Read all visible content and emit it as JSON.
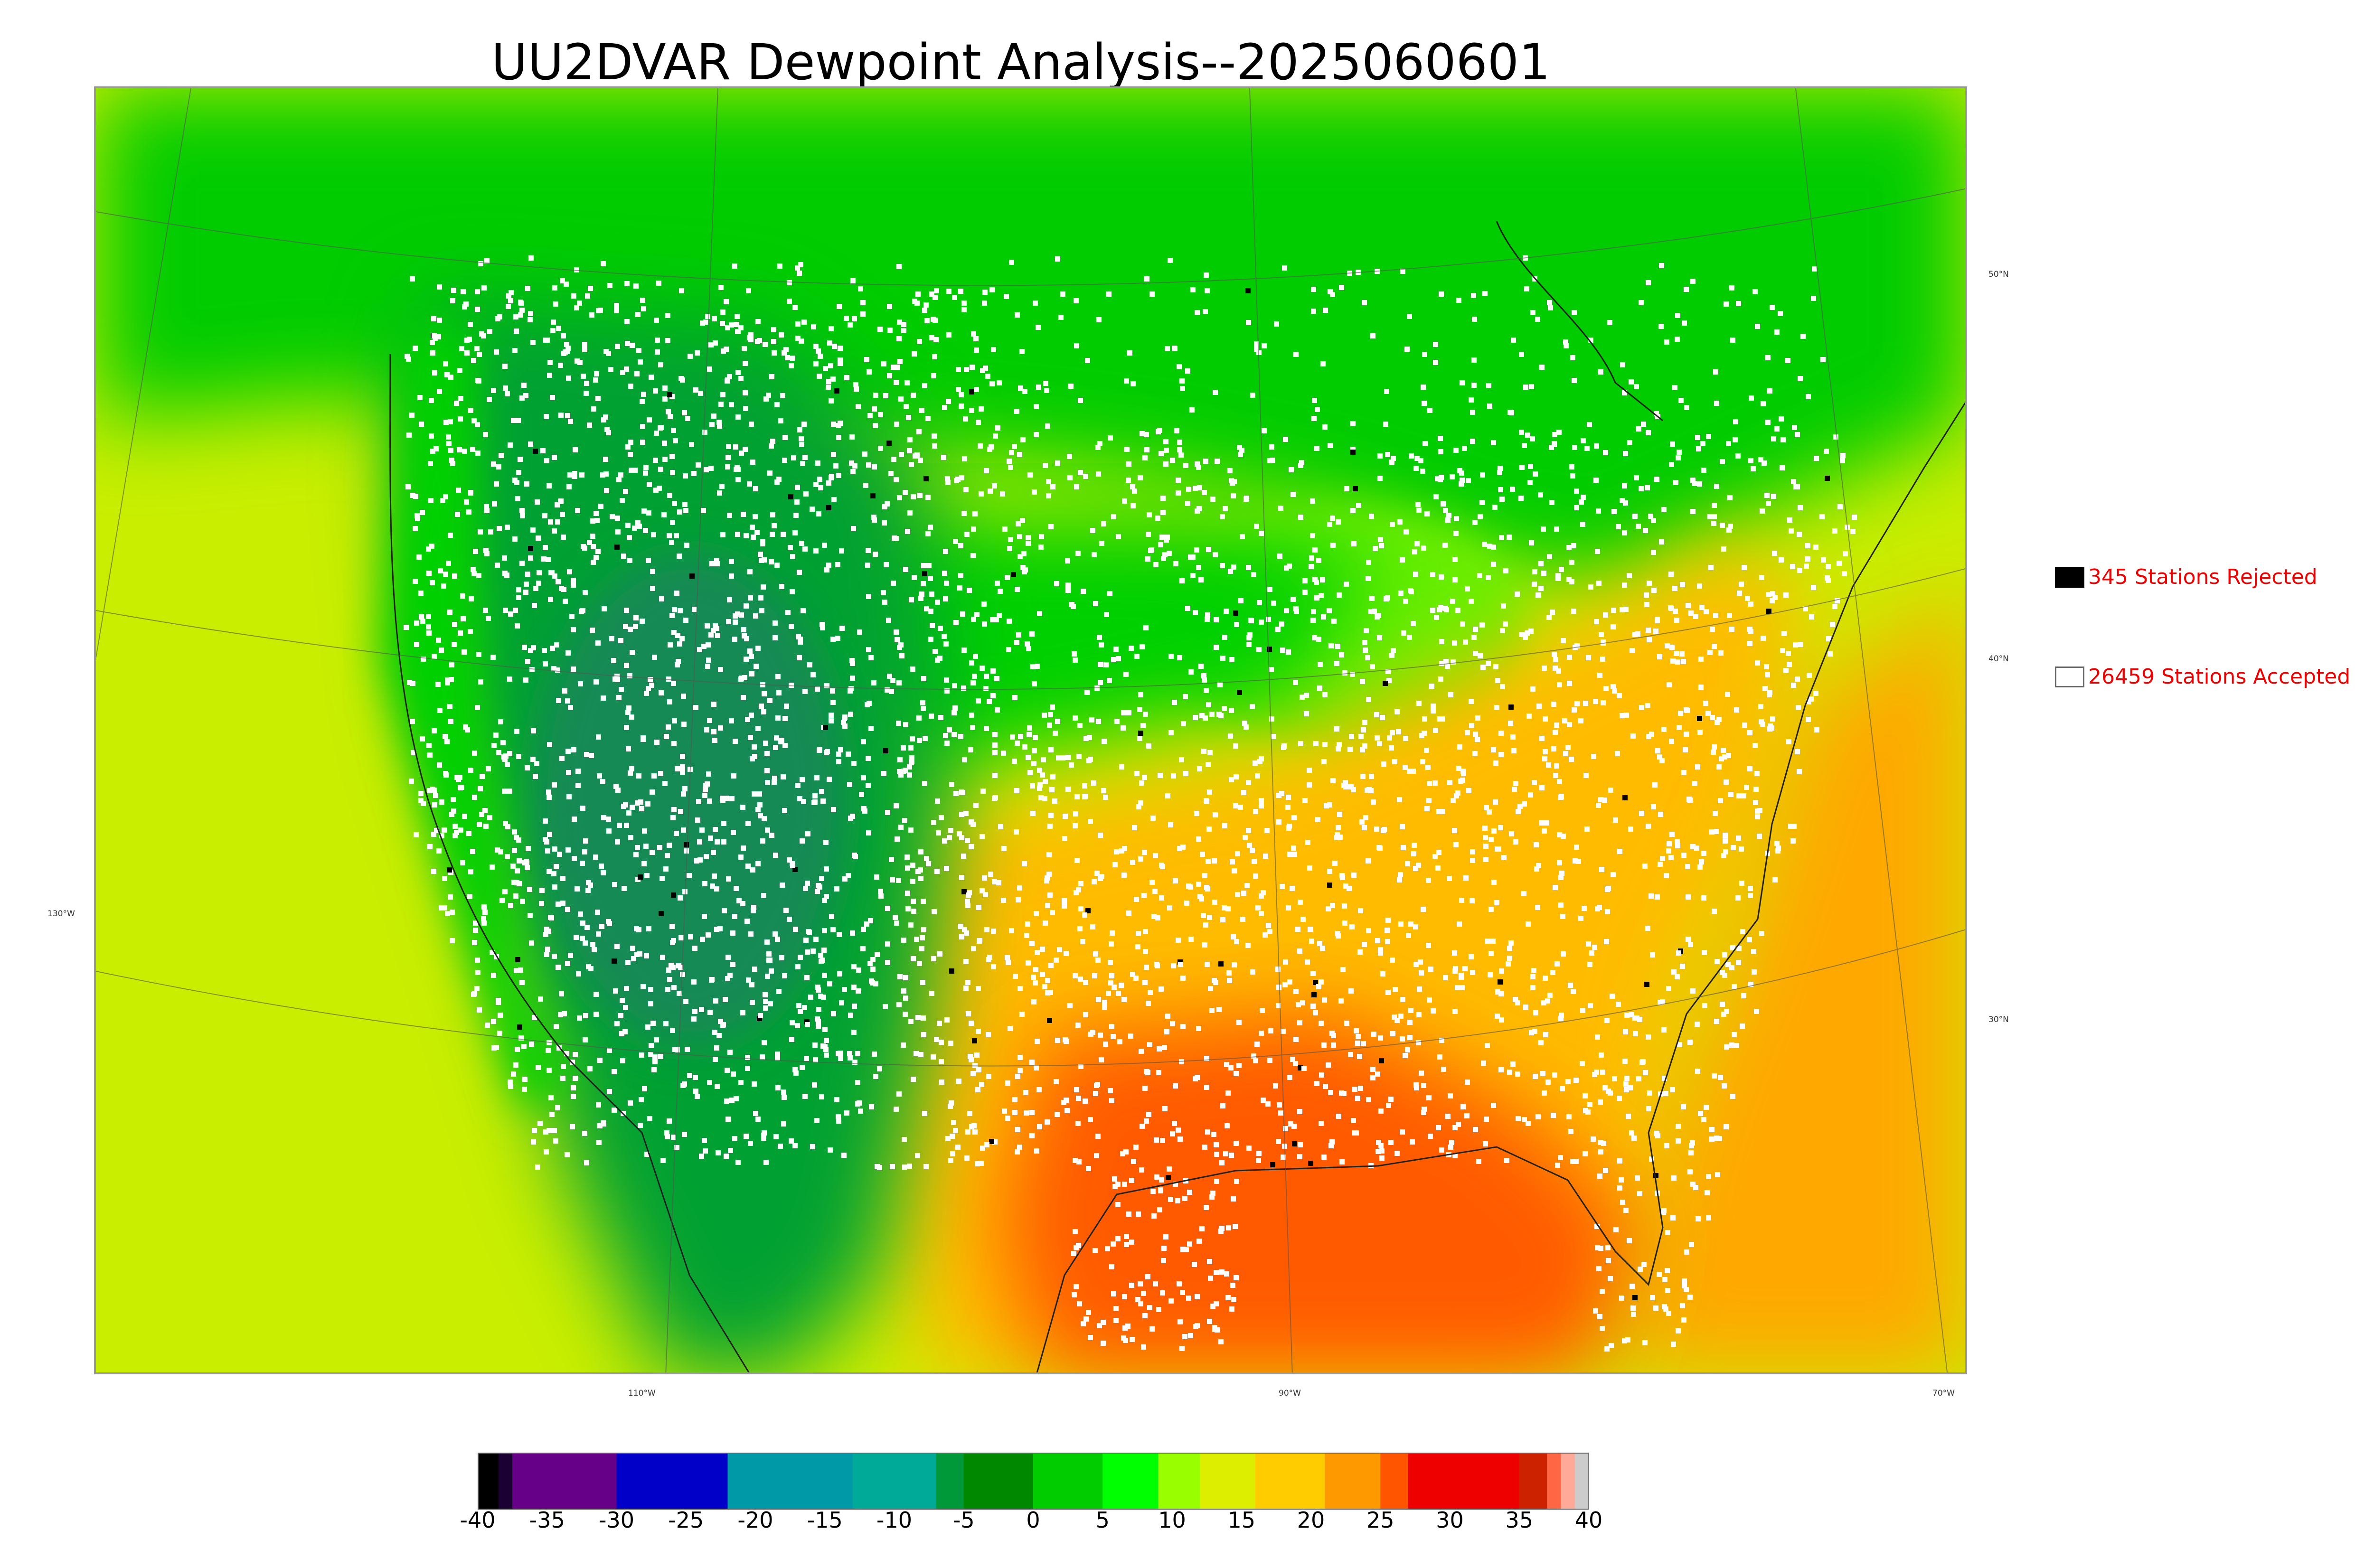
{
  "title": "UU2DVAR Dewpoint Analysis--2025060601",
  "graticule": {
    "lat_labels": [
      "50°N",
      "40°N",
      "30°N"
    ],
    "lon_labels": [
      "130°W",
      "110°W",
      "90°W",
      "70°W"
    ]
  },
  "legend": {
    "rejected_label": "345 Stations Rejected",
    "accepted_label": "26459 Stations Accepted"
  },
  "colorbar": {
    "ticks": [
      "-40",
      "-35",
      "-30",
      "-25",
      "-20",
      "-15",
      "-10",
      "-5",
      "0",
      "5",
      "10",
      "15",
      "20",
      "25",
      "30",
      "35",
      "40"
    ],
    "min": -40,
    "max": 40,
    "segments": [
      {
        "from": -40,
        "to": -38.5,
        "color": "#000000"
      },
      {
        "from": -38.5,
        "to": -37.5,
        "color": "#1a0033"
      },
      {
        "from": -37.5,
        "to": -30,
        "color": "#660088"
      },
      {
        "from": -30,
        "to": -22,
        "color": "#0000c8"
      },
      {
        "from": -22,
        "to": -13,
        "color": "#0099a8"
      },
      {
        "from": -13,
        "to": -7,
        "color": "#00aa99"
      },
      {
        "from": -7,
        "to": -5,
        "color": "#00993a"
      },
      {
        "from": -5,
        "to": 0,
        "color": "#008800"
      },
      {
        "from": 0,
        "to": 5,
        "color": "#00cc00"
      },
      {
        "from": 5,
        "to": 9,
        "color": "#00ff00"
      },
      {
        "from": 9,
        "to": 12,
        "color": "#99ff00"
      },
      {
        "from": 12,
        "to": 16,
        "color": "#ddee00"
      },
      {
        "from": 16,
        "to": 21,
        "color": "#ffcc00"
      },
      {
        "from": 21,
        "to": 25,
        "color": "#ff9900"
      },
      {
        "from": 25,
        "to": 27,
        "color": "#ff5500"
      },
      {
        "from": 27,
        "to": 35,
        "color": "#ee0000"
      },
      {
        "from": 35,
        "to": 37,
        "color": "#cc2200"
      },
      {
        "from": 37,
        "to": 38,
        "color": "#ff6644"
      },
      {
        "from": 38,
        "to": 39,
        "color": "#ffaa99"
      },
      {
        "from": 39,
        "to": 40,
        "color": "#cccccc"
      }
    ]
  },
  "colors": {
    "west_dry": "#00a030",
    "dry_core": "#138a55",
    "plains": "#00d000",
    "canada": "#00cc00",
    "pacific": "#c9ee00",
    "great_lakes": "#66ee00",
    "southeast": "#ffbb00",
    "gulf": "#ff5a00",
    "atlantic": "#ffa800",
    "accepted_station": "#ffffff",
    "rejected_station": "#000000"
  }
}
